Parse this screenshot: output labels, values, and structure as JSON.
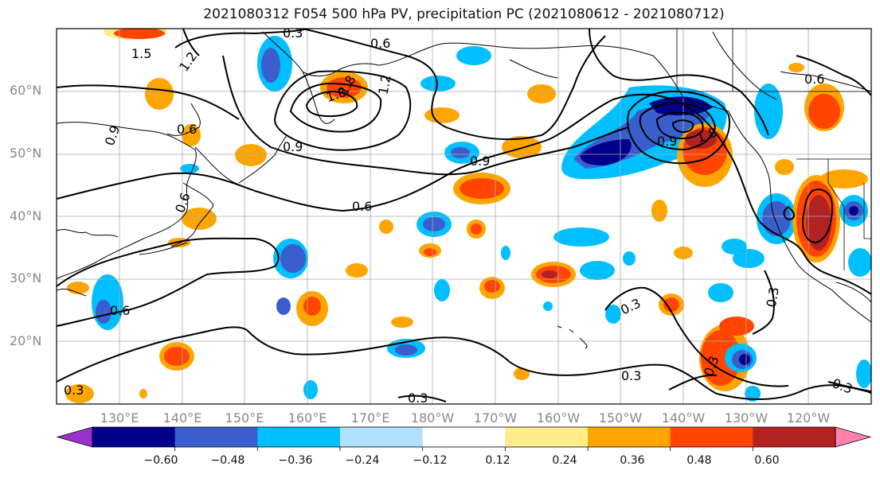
{
  "title": "2021080312 F054 500 hPa PV, precipitation PC (2021080612 - 2021080712)",
  "map": {
    "lat_labels": [
      "60°N",
      "50°N",
      "40°N",
      "30°N",
      "20°N"
    ],
    "lon_labels": [
      "130°E",
      "140°E",
      "150°E",
      "160°E",
      "170°E",
      "180°W",
      "170°W",
      "160°W",
      "150°W",
      "140°W",
      "130°W",
      "120°W"
    ],
    "contour_labels": [
      "1.5",
      "1.2",
      "0.3",
      "0.6",
      "1.8",
      "1.8",
      "1.2",
      "0.9",
      "0.6",
      "0.9",
      "0.9",
      "0.9",
      "1.8",
      "0.6",
      "0.6",
      "0.6",
      "0.6",
      "0.3",
      "0.3",
      "0.3",
      "0.3",
      "0.3",
      "0.3",
      "0.3"
    ],
    "colors": {
      "coast": "#000000",
      "grid": "#999999"
    }
  },
  "colorbar": {
    "ticks": [
      "−0.60",
      "−0.48",
      "−0.36",
      "−0.24",
      "−0.12",
      "0.12",
      "0.24",
      "0.36",
      "0.48",
      "0.60"
    ],
    "colors": [
      "#9932cc",
      "#00008b",
      "#3a5fcd",
      "#00bfff",
      "#b0e2ff",
      "#ffffff",
      "#ffec8b",
      "#ffa500",
      "#ff4500",
      "#b22222",
      "#ff82ab"
    ]
  }
}
